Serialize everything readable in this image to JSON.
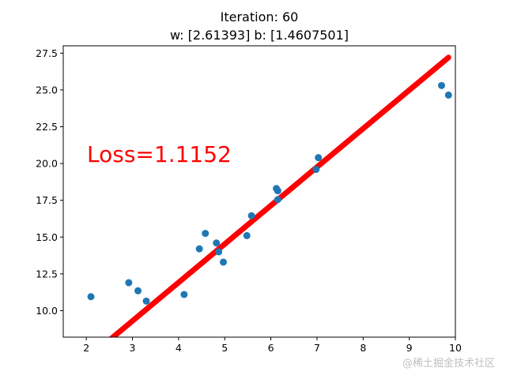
{
  "chart_data": {
    "type": "scatter",
    "title": "Iteration: 60",
    "subtitle": "w: [2.61393] b: [1.4607501]",
    "xlabel": "",
    "ylabel": "",
    "xlim": [
      1.5,
      10.0
    ],
    "ylim": [
      8.2,
      28.0
    ],
    "x_ticks": [
      2,
      3,
      4,
      5,
      6,
      7,
      8,
      9,
      10
    ],
    "x_tick_labels": [
      "2",
      "3",
      "4",
      "5",
      "6",
      "7",
      "8",
      "9",
      "10"
    ],
    "y_ticks": [
      10.0,
      12.5,
      15.0,
      17.5,
      20.0,
      22.5,
      25.0,
      27.5
    ],
    "y_tick_labels": [
      "10.0",
      "12.5",
      "15.0",
      "17.5",
      "20.0",
      "22.5",
      "25.0",
      "27.5"
    ],
    "grid": false,
    "annotation": "Loss=1.1152",
    "series": [
      {
        "kind": "scatter",
        "color": "#1f77b4",
        "x": [
          2.1,
          2.92,
          3.12,
          3.3,
          4.12,
          4.45,
          4.58,
          4.82,
          4.87,
          4.97,
          5.48,
          5.58,
          6.12,
          6.15,
          6.15,
          6.98,
          7.03,
          9.7,
          9.85
        ],
        "y": [
          10.95,
          11.9,
          11.35,
          10.65,
          11.1,
          14.2,
          15.25,
          14.6,
          14.0,
          13.3,
          15.1,
          16.45,
          18.3,
          18.15,
          17.55,
          19.6,
          20.4,
          25.3,
          24.65
        ]
      },
      {
        "kind": "line",
        "color": "#ff0000",
        "x_start": 2.1,
        "x_end": 9.85,
        "w": 2.61393,
        "b": 1.4607501
      }
    ]
  },
  "annotation_color": "#ff0000",
  "watermark": "@稀土掘金技术社区"
}
